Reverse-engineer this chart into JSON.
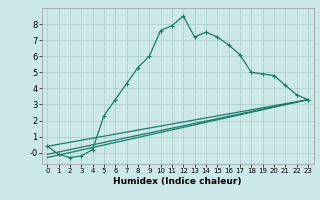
{
  "title": "",
  "xlabel": "Humidex (Indice chaleur)",
  "background_color": "#cce8e8",
  "grid_color": "#aacccc",
  "line_color": "#1a7a6a",
  "xlim": [
    -0.5,
    23.5
  ],
  "ylim": [
    -0.7,
    9.0
  ],
  "yticks": [
    0,
    1,
    2,
    3,
    4,
    5,
    6,
    7,
    8
  ],
  "ytick_labels": [
    "-0",
    "1",
    "2",
    "3",
    "4",
    "5",
    "6",
    "7",
    "8"
  ],
  "xticks": [
    0,
    1,
    2,
    3,
    4,
    5,
    6,
    7,
    8,
    9,
    10,
    11,
    12,
    13,
    14,
    15,
    16,
    17,
    18,
    19,
    20,
    21,
    22,
    23
  ],
  "series1_x": [
    0,
    1,
    2,
    3,
    4,
    5,
    6,
    7,
    8,
    9,
    10,
    11,
    12,
    13,
    14,
    15,
    16,
    17,
    18,
    19,
    20,
    21,
    22,
    23
  ],
  "series1_y": [
    0.4,
    -0.1,
    -0.3,
    -0.2,
    0.2,
    2.3,
    3.3,
    4.3,
    5.3,
    6.0,
    7.6,
    7.9,
    8.5,
    7.2,
    7.5,
    7.2,
    6.7,
    6.1,
    5.0,
    4.9,
    4.8,
    4.2,
    3.6,
    3.3
  ],
  "series2_x": [
    0,
    23
  ],
  "series2_y": [
    0.4,
    3.3
  ],
  "series3_x": [
    0,
    23
  ],
  "series3_y": [
    -0.1,
    3.3
  ],
  "series4_x": [
    0,
    23
  ],
  "series4_y": [
    -0.3,
    3.3
  ]
}
